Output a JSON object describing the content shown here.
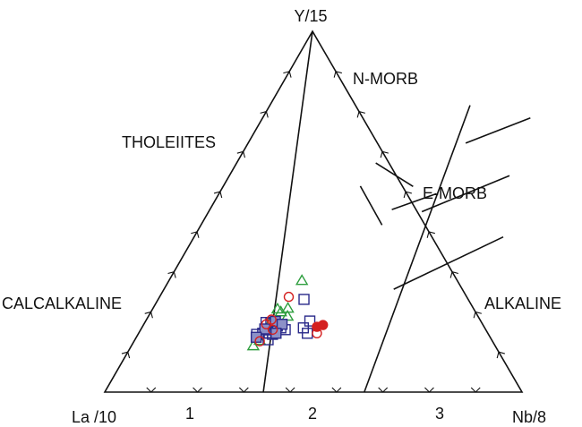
{
  "chart_data": {
    "type": "scatter",
    "subtype": "ternary",
    "vertex_labels": {
      "top": "Y/15",
      "left": "La /10",
      "right": "Nb/8"
    },
    "field_labels": [
      "N-MORB",
      "THOLEIITES",
      "E-MORB",
      "CALCALKALINE",
      "ALKALINE"
    ],
    "numbered_fields": [
      "1",
      "2",
      "3"
    ],
    "grid": false,
    "legend": "none",
    "marker_colors": {
      "triangle": "#2e9e3e",
      "square": "#2a2a8a",
      "square_fill": "#8c91c8",
      "circle": "#d42020"
    },
    "series": [
      {
        "marker": "triangle",
        "points": [
          {
            "x": 0.318,
            "y": 0.309
          },
          {
            "x": 0.323,
            "y": 0.232
          },
          {
            "x": 0.299,
            "y": 0.23
          },
          {
            "x": 0.311,
            "y": 0.222
          },
          {
            "x": 0.333,
            "y": 0.21
          },
          {
            "x": 0.301,
            "y": 0.193
          },
          {
            "x": 0.317,
            "y": 0.186
          },
          {
            "x": 0.296,
            "y": 0.171
          },
          {
            "x": 0.311,
            "y": 0.173
          },
          {
            "x": 0.292,
            "y": 0.128
          },
          {
            "x": 0.3,
            "y": 0.143
          }
        ]
      },
      {
        "marker": "square",
        "points": [
          {
            "x": 0.349,
            "y": 0.257
          },
          {
            "x": 0.29,
            "y": 0.193
          },
          {
            "x": 0.303,
            "y": 0.19
          },
          {
            "x": 0.322,
            "y": 0.183
          },
          {
            "x": 0.333,
            "y": 0.178
          },
          {
            "x": 0.284,
            "y": 0.16
          },
          {
            "x": 0.297,
            "y": 0.163
          },
          {
            "x": 0.312,
            "y": 0.164
          },
          {
            "x": 0.322,
            "y": 0.16
          },
          {
            "x": 0.346,
            "y": 0.173
          },
          {
            "x": 0.319,
            "y": 0.145
          },
          {
            "x": 0.393,
            "y": 0.197
          },
          {
            "x": 0.387,
            "y": 0.178
          },
          {
            "x": 0.404,
            "y": 0.163
          }
        ]
      },
      {
        "marker": "square-filled",
        "points": [
          {
            "x": 0.311,
            "y": 0.196
          },
          {
            "x": 0.331,
            "y": 0.188
          },
          {
            "x": 0.296,
            "y": 0.175
          },
          {
            "x": 0.329,
            "y": 0.163
          },
          {
            "x": 0.287,
            "y": 0.152
          }
        ]
      },
      {
        "marker": "circle",
        "points": [
          {
            "x": 0.309,
            "y": 0.264
          },
          {
            "x": 0.299,
            "y": 0.201
          },
          {
            "x": 0.293,
            "y": 0.188
          },
          {
            "x": 0.316,
            "y": 0.173
          },
          {
            "x": 0.301,
            "y": 0.141
          },
          {
            "x": 0.427,
            "y": 0.163
          }
        ]
      },
      {
        "marker": "circle-filled",
        "points": [
          {
            "x": 0.418,
            "y": 0.181
          },
          {
            "x": 0.43,
            "y": 0.186
          }
        ]
      }
    ]
  }
}
